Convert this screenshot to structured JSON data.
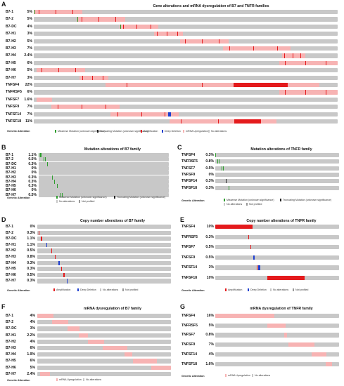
{
  "colors": {
    "background_track": "#c8c8c8",
    "missense": "#2e9e2e",
    "truncating": "#222222",
    "amplification": "#e41a1c",
    "deep_deletion": "#1f3fcf",
    "mrna_upregulation": "#f7b3b3",
    "not_profiled": "#ffffff"
  },
  "legend_labels": {
    "genetic_alteration": "Genetic Alteration",
    "missense": "Missense Mutation (unknown significance)",
    "truncating": "Truncating Mutation (unknown significance)",
    "amplification": "Amplification",
    "deep_deletion": "Deep Deletion",
    "mrna_upregulation": "mRNA Upregulation",
    "no_alterations": "No alterations",
    "not_profiled": "Not profiled"
  },
  "panels": {
    "A": {
      "letter": "A",
      "title": "Gene alterations and mRNA dysregulation of B7 and TNFR families",
      "rows": [
        {
          "gene": "B7-1",
          "pct": "5%"
        },
        {
          "gene": "B7-2",
          "pct": "5%"
        },
        {
          "gene": "B7-DC",
          "pct": "4%"
        },
        {
          "gene": "B7-H1",
          "pct": "3%"
        },
        {
          "gene": "B7-H2",
          "pct": "5%"
        },
        {
          "gene": "B7-H3",
          "pct": "7%"
        },
        {
          "gene": "B7-H4",
          "pct": "2.4%"
        },
        {
          "gene": "B7-H5",
          "pct": "6%"
        },
        {
          "gene": "B7-H6",
          "pct": "5%"
        },
        {
          "gene": "B7-H7",
          "pct": "3%"
        },
        {
          "gene": "TNFSF4",
          "pct": "22%"
        },
        {
          "gene": "TNFRSF5",
          "pct": "6%"
        },
        {
          "gene": "TNFSF7",
          "pct": "1.6%"
        },
        {
          "gene": "TNFSF9",
          "pct": "7%"
        },
        {
          "gene": "TNFSF14",
          "pct": "7%"
        },
        {
          "gene": "TNFSF18",
          "pct": "11%"
        }
      ]
    },
    "B": {
      "letter": "B",
      "title": "Mutation alterations of B7 family",
      "rows": [
        {
          "gene": "B7-1",
          "pct": "1.1%"
        },
        {
          "gene": "B7-2",
          "pct": "0.5%"
        },
        {
          "gene": "B7-DC",
          "pct": "0.3%"
        },
        {
          "gene": "B7-H1",
          "pct": "0%"
        },
        {
          "gene": "B7-H2",
          "pct": "0%"
        },
        {
          "gene": "B7-H3",
          "pct": "0.3%"
        },
        {
          "gene": "B7-H4",
          "pct": "0.3%"
        },
        {
          "gene": "B7-H5",
          "pct": "0.3%"
        },
        {
          "gene": "B7-H6",
          "pct": "0%"
        },
        {
          "gene": "B7-H7",
          "pct": "0.5%"
        }
      ]
    },
    "C": {
      "letter": "C",
      "title": "Mutation alterations of TNFR family",
      "rows": [
        {
          "gene": "TNFSF4",
          "pct": "0.3%"
        },
        {
          "gene": "TNFRSF5",
          "pct": "0.8%"
        },
        {
          "gene": "TNFSF7",
          "pct": "0.5%"
        },
        {
          "gene": "TNFSF9",
          "pct": "0%"
        },
        {
          "gene": "TNFSF14",
          "pct": "0.3%"
        },
        {
          "gene": "TNFSF18",
          "pct": "0.3%"
        }
      ]
    },
    "D": {
      "letter": "D",
      "title": "Copy number alterations of B7 family",
      "rows": [
        {
          "gene": "B7-1",
          "pct": "0%"
        },
        {
          "gene": "B7-2",
          "pct": "0.3%"
        },
        {
          "gene": "B7-DC",
          "pct": "1.1%"
        },
        {
          "gene": "B7-H1",
          "pct": "1.1%"
        },
        {
          "gene": "B7-H2",
          "pct": "0.5%"
        },
        {
          "gene": "B7-H3",
          "pct": "0.8%"
        },
        {
          "gene": "B7-H4",
          "pct": "0.3%"
        },
        {
          "gene": "B7-H5",
          "pct": "0.3%"
        },
        {
          "gene": "B7-H6",
          "pct": "0.5%"
        },
        {
          "gene": "B7-H7",
          "pct": "0.3%"
        }
      ]
    },
    "E": {
      "letter": "E",
      "title": "Copy number alterations of TNFR family",
      "rows": [
        {
          "gene": "TNFSF4",
          "pct": "10%"
        },
        {
          "gene": "TNFRSF5",
          "pct": "0.3%"
        },
        {
          "gene": "TNFSF7",
          "pct": "0.5%"
        },
        {
          "gene": "TNFSF9",
          "pct": "0.5%"
        },
        {
          "gene": "TNFSF14",
          "pct": "3%"
        },
        {
          "gene": "TNFSF18",
          "pct": "10%"
        }
      ]
    },
    "F": {
      "letter": "F",
      "title": "mRNA dysregulation of B7 family",
      "rows": [
        {
          "gene": "B7-1",
          "pct": "4%"
        },
        {
          "gene": "B7-2",
          "pct": "4%"
        },
        {
          "gene": "B7-DC",
          "pct": "3%"
        },
        {
          "gene": "B7-H1",
          "pct": "2.2%"
        },
        {
          "gene": "B7-H2",
          "pct": "4%"
        },
        {
          "gene": "B7-H3",
          "pct": "6%"
        },
        {
          "gene": "B7-H4",
          "pct": "1.9%"
        },
        {
          "gene": "B7-H5",
          "pct": "6%"
        },
        {
          "gene": "B7-H6",
          "pct": "5%"
        },
        {
          "gene": "B7-H7",
          "pct": "2.4%"
        }
      ]
    },
    "G": {
      "letter": "G",
      "title": "mRNA dysregulation of TNFR family",
      "rows": [
        {
          "gene": "TNFSF4",
          "pct": "16%"
        },
        {
          "gene": "TNFRSF5",
          "pct": "5%"
        },
        {
          "gene": "TNFSF7",
          "pct": "0.8%"
        },
        {
          "gene": "TNFSF9",
          "pct": "7%"
        },
        {
          "gene": "TNFSF14",
          "pct": "4%"
        },
        {
          "gene": "TNFSF18",
          "pct": "1.6%"
        }
      ]
    }
  }
}
